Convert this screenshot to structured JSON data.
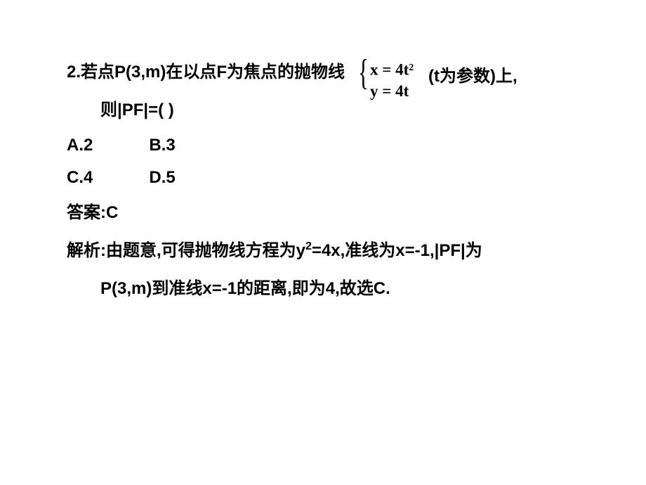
{
  "question": {
    "number": "2.",
    "stem_part1": "若点P(3,m)在以点F为焦点的抛物线",
    "param_note": "(t为参数)上,",
    "stem_part2": "则|PF|=(    )",
    "eq1_lhs": "x = 4t",
    "eq1_sup": "2",
    "eq2": "y = 4t"
  },
  "options": {
    "a": "A.2",
    "b": "B.3",
    "c": "C.4",
    "d": "D.5"
  },
  "answer": {
    "label": "答案:C"
  },
  "explanation": {
    "label": "解析:",
    "text1": "由题意,可得抛物线方程为y",
    "sup": "2",
    "text2": "=4x,准线为x=-1,|PF|为",
    "text3": "P(3,m)到准线x=-1的距离,即为4,故选C."
  },
  "style": {
    "text_color": "#000000",
    "background": "#ffffff",
    "font_size_main": 24,
    "font_size_sup": 16,
    "font_weight": "bold"
  }
}
